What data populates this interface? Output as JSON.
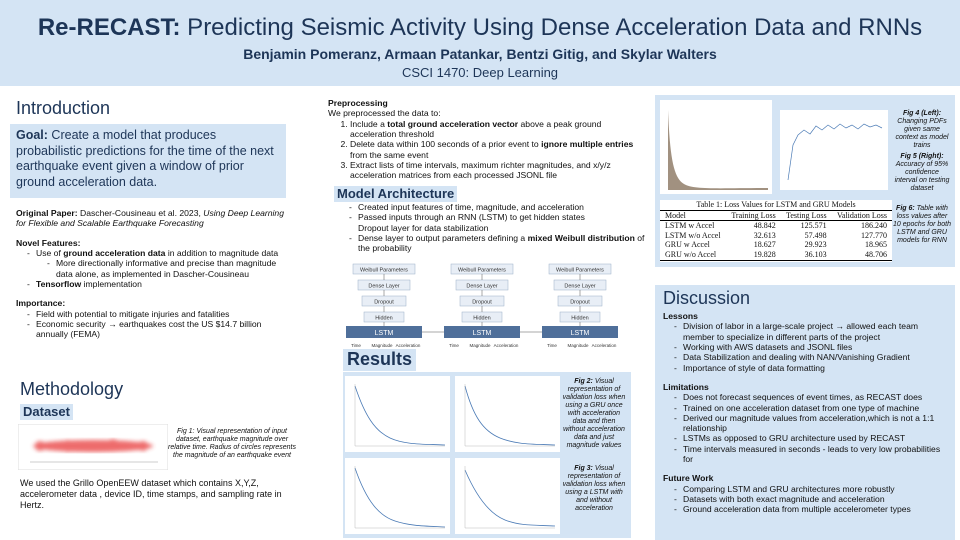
{
  "header": {
    "title": [
      "Re-RECAST:",
      " Predicting Seismic Activity Using Dense Acceleration Data and RNNs"
    ],
    "authors": "Benjamin Pomeranz, Armaan Patankar, Bentzi Gitig, and Skylar Walters",
    "course": "CSCI 1470: Deep Learning"
  },
  "introduction": {
    "heading": "Introduction",
    "goal": [
      "Goal:",
      " Create a model that produces probabilistic predictions for the time of the next earthquake event given a window of prior ground acceleration data."
    ],
    "original_paper": [
      "Original Paper:",
      " Dascher-Cousineau et al. 2023, ",
      "Using Deep Learning for Flexible and Scalable Earthquake Forecasting"
    ],
    "novel_features_heading": "Novel Features:",
    "novel_features": [
      [
        "Use of ",
        "ground acceleration data",
        " in addition to magnitude data"
      ],
      [
        "More directionally informative and precise than magnitude data alone, as implemented in Dascher-Cousineau"
      ],
      [
        "Tensorflow",
        " implementation"
      ]
    ],
    "importance_heading": "Importance:",
    "importance": [
      "Field with potential to mitigate injuries and fatalities",
      "Economic security → earthquakes cost the US $14.7 billion annually (FEMA)"
    ]
  },
  "methodology": {
    "heading": "Methodology",
    "subheading": "Dataset",
    "fig1_caption": "Fig 1: Visual representation of input dataset, earthquake magnitude over relative time. Radius of circles represents the magnitude of an earthquake event",
    "text": "We used the Grillo OpenEEW dataset which contains X,Y,Z, accelerometer data , device ID, time stamps, and sampling rate in Hertz."
  },
  "preprocessing": {
    "heading": "Preprocessing",
    "intro": "We preprocessed the data to:",
    "items": [
      [
        "Include a ",
        "total ground acceleration vector",
        " above a peak ground acceleration threshold"
      ],
      [
        "Delete data within 100 seconds of a prior event to ",
        "ignore multiple entries",
        " from the same event"
      ],
      [
        "Extract lists of time intervals, maximum richter magnitudes, and x/y/z acceleration matrices from each processed JSONL file"
      ]
    ]
  },
  "model_architecture": {
    "heading": "Model Architecture",
    "items": [
      [
        "Created input features of time, magnitude, and acceleration"
      ],
      [
        "Passed inputs through an RNN (LSTM) to get hidden states",
        "Dropout layer for data stabilization"
      ],
      [
        "Dense layer to output parameters defining a ",
        "mixed Weibull distribution",
        " of the probability"
      ]
    ],
    "diagram": {
      "weibull": "Weibull Parameters",
      "dense": "Dense Layer",
      "dropout": "Dropout",
      "hidden": "Hidden",
      "lstm": "LSTM",
      "inputs": [
        "Time",
        "Magnitude",
        "Acceleration"
      ]
    }
  },
  "results": {
    "heading": "Results",
    "fig2_caption": [
      "Fig 2:",
      " Visual representation of validation loss when using a GRU once with acceleration data and then without acceleration data and just magnitude values"
    ],
    "fig3_caption": [
      "Fig 3:",
      " Visual representation of validation loss when using a LSTM with and without acceleration"
    ]
  },
  "figures": {
    "fig4_caption": [
      "Fig 4 (Left):",
      " Changing PDFs given same context as model trains"
    ],
    "fig5_caption": [
      "Fig 5 (Right):",
      " Accuracy of 95% confidence interval on testing dataset"
    ],
    "fig6_caption": [
      "Fig 6:",
      " Table with loss values after 10 epochs for both LSTM and GRU models for RNN"
    ]
  },
  "table": {
    "caption": "Table 1: Loss Values for LSTM and GRU Models",
    "columns": [
      "Model",
      "Training Loss",
      "Testing Loss",
      "Validation Loss"
    ],
    "rows": [
      [
        "LSTM w Accel",
        "48.842",
        "125.571",
        "186.240"
      ],
      [
        "LSTM w/o Accel",
        "32.613",
        "57.498",
        "127.770"
      ],
      [
        "GRU w Accel",
        "18.627",
        "29.923",
        "18.965"
      ],
      [
        "GRU w/o Accel",
        "19.828",
        "36.103",
        "48.706"
      ]
    ]
  },
  "discussion": {
    "heading": "Discussion",
    "lessons_heading": "Lessons",
    "lessons": [
      "Division of labor in a large-scale project → allowed each team member to specialize in different parts of the project",
      "Working with AWS datasets and JSONL files",
      "Data Stabilization and dealing with NAN/Vanishing Gradient",
      "Importance of style of data formatting"
    ],
    "limitations_heading": "Limitations",
    "limitations": [
      "Does not forecast sequences of event times, as RECAST does",
      "Trained on one acceleration dataset from one type of machine",
      "Derived our magnitude values from acceleration,which is not a 1:1 relationship",
      " LSTMs as opposed to GRU  architecture used by RECAST",
      "Time intervals measured in seconds - leads to very low probabilities for"
    ],
    "future_heading": "Future Work",
    "future": [
      "Comparing LSTM and GRU architectures more  robustly",
      "Datasets with both exact magnitude and acceleration",
      "Ground acceleration data from multiple accelerometer types"
    ]
  }
}
